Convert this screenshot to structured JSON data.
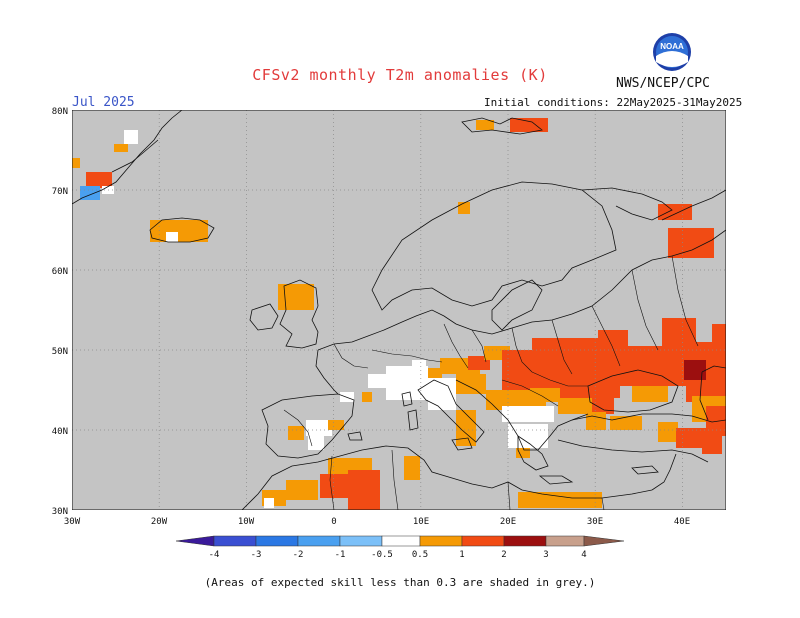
{
  "header": {
    "title": "CFSv2 monthly T2m anomalies (K)",
    "month": "Jul 2025",
    "agency": "NWS/NCEP/CPC",
    "initial_conditions": "Initial conditions: 22May2025-31May2025",
    "logo_text": "NOAA"
  },
  "map": {
    "lon_range": [
      -30,
      45
    ],
    "lat_range": [
      30,
      80
    ],
    "lat_ticks": [
      "80N",
      "70N",
      "60N",
      "50N",
      "40N",
      "30N"
    ],
    "lon_ticks": [
      "30W",
      "20W",
      "10W",
      "0",
      "10E",
      "20E",
      "30E",
      "40E"
    ],
    "background_color": "#c4c4c4",
    "grid": "dotted"
  },
  "colorbar": {
    "labels": [
      "-4",
      "-3",
      "-2",
      "-1",
      "-0.5",
      "0.5",
      "1",
      "2",
      "3",
      "4"
    ],
    "colors": [
      "#3a1a9a",
      "#3a4fd2",
      "#2b78e4",
      "#4aa0f0",
      "#7cc0f8",
      "#ffffff",
      "#f59a05",
      "#f14b14",
      "#dc2222",
      "#9c0f0f",
      "#c8a08c",
      "#8c5a4a"
    ]
  },
  "footnote": "(Areas of expected skill less than 0.3 are shaded in grey.)"
}
